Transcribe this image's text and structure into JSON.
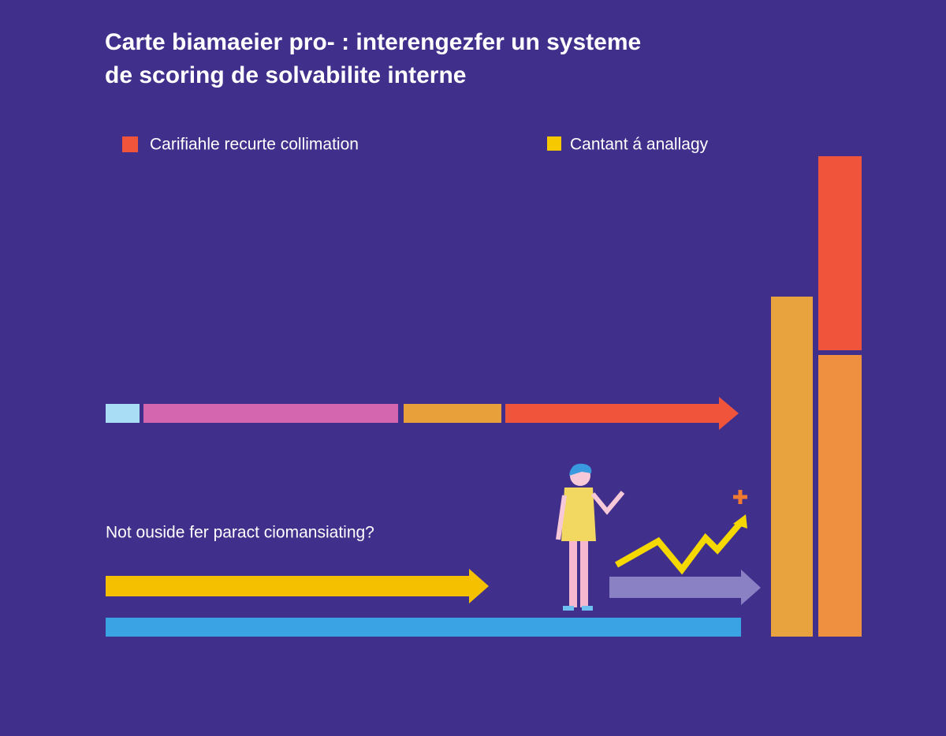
{
  "header": {
    "title_lines": [
      "Carte biamaeier pro- : interengezfer un systeme",
      "de scoring de solvabilite interne"
    ]
  },
  "legend": [
    {
      "label": "Carifiahle recurte collimation"
    },
    {
      "label": "Cantant á anallagy"
    }
  ],
  "question": "Not ouside fer paract ciomansiating?"
}
